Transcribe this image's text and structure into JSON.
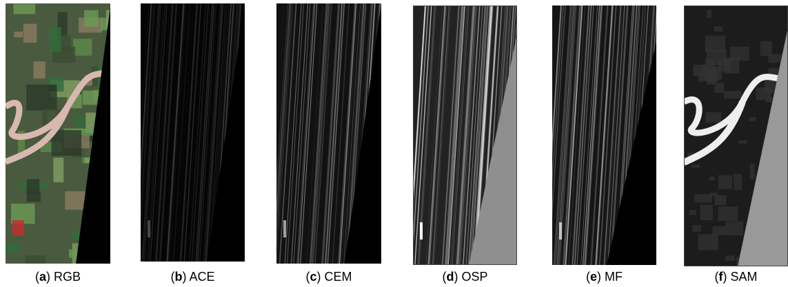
{
  "panels": [
    {
      "caption": [
        "(",
        "a",
        ") RGB"
      ]
    },
    {
      "caption": [
        "(",
        "b",
        ") ACE"
      ]
    },
    {
      "caption": [
        "(",
        "c",
        ") CEM"
      ]
    },
    {
      "caption": [
        "(",
        "d",
        ") OSP"
      ]
    },
    {
      "caption": [
        "(",
        "e",
        ") MF"
      ]
    },
    {
      "caption": [
        "(",
        "f",
        ") SAM"
      ]
    }
  ]
}
